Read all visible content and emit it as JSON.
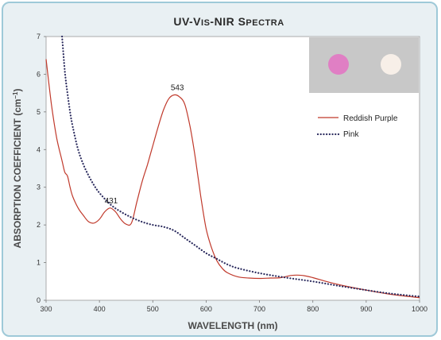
{
  "chart_data": {
    "type": "line",
    "title_parts": {
      "uv": "UV-V",
      "is_sc": "IS",
      "dash": "-NIR S",
      "pectra_sc": "PECTRA"
    },
    "xlabel": "WAVELENGTH (nm)",
    "ylabel_parts": {
      "main": "ABSORPTION COEFFICIENT (cm",
      "sup": "–1",
      "close": ")"
    },
    "xlim": [
      300,
      1000
    ],
    "ylim": [
      0,
      7
    ],
    "xticks": [
      "300",
      "400",
      "500",
      "600",
      "700",
      "800",
      "900",
      "1000"
    ],
    "yticks": [
      "0",
      "1",
      "2",
      "3",
      "4",
      "5",
      "6",
      "7"
    ],
    "grid": false,
    "legend_position": "right",
    "inset": {
      "background": "#c8c8c8",
      "swatches": [
        "#e07fc4",
        "#f7efe8"
      ]
    },
    "annotations": [
      {
        "text": "543",
        "x": 546,
        "y": 5.45
      },
      {
        "text": "431",
        "x": 422,
        "y": 2.45
      }
    ],
    "series": [
      {
        "name": "Reddish Purple",
        "color": "#c0392b",
        "style": "solid",
        "x": [
          300,
          310,
          320,
          330,
          335,
          340,
          345,
          350,
          360,
          370,
          380,
          390,
          400,
          410,
          420,
          430,
          440,
          450,
          460,
          470,
          480,
          490,
          500,
          510,
          520,
          530,
          540,
          550,
          560,
          570,
          580,
          590,
          600,
          610,
          620,
          630,
          640,
          660,
          680,
          700,
          720,
          740,
          760,
          780,
          800,
          830,
          860,
          900,
          940,
          980,
          1000
        ],
        "y": [
          6.4,
          5.2,
          4.3,
          3.7,
          3.4,
          3.3,
          3.0,
          2.75,
          2.45,
          2.25,
          2.08,
          2.05,
          2.15,
          2.35,
          2.45,
          2.35,
          2.15,
          2.02,
          2.05,
          2.6,
          3.15,
          3.6,
          4.1,
          4.6,
          5.05,
          5.35,
          5.45,
          5.4,
          5.2,
          4.6,
          3.75,
          2.75,
          1.9,
          1.4,
          1.05,
          0.85,
          0.73,
          0.62,
          0.59,
          0.58,
          0.59,
          0.6,
          0.66,
          0.66,
          0.6,
          0.48,
          0.38,
          0.27,
          0.17,
          0.1,
          0.07
        ]
      },
      {
        "name": "Pink",
        "color": "#2b2b5e",
        "style": "dotted",
        "x": [
          330,
          335,
          340,
          345,
          350,
          360,
          370,
          380,
          390,
          400,
          420,
          440,
          460,
          480,
          500,
          520,
          540,
          560,
          580,
          600,
          620,
          640,
          660,
          700,
          750,
          800,
          850,
          900,
          950,
          1000
        ],
        "y": [
          7.0,
          6.1,
          5.5,
          5.0,
          4.6,
          4.0,
          3.6,
          3.3,
          3.05,
          2.85,
          2.55,
          2.35,
          2.2,
          2.08,
          2.0,
          1.95,
          1.85,
          1.65,
          1.45,
          1.25,
          1.1,
          0.95,
          0.85,
          0.72,
          0.6,
          0.5,
          0.38,
          0.27,
          0.17,
          0.1
        ]
      }
    ]
  }
}
